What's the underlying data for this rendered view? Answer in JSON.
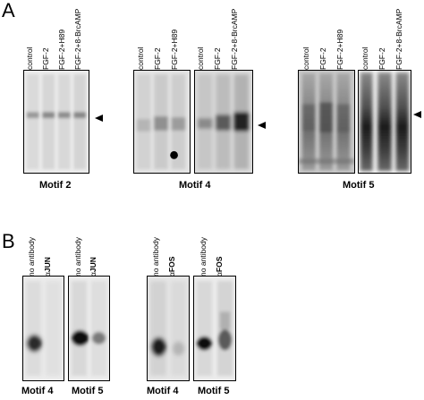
{
  "panel_a": {
    "letter": "A",
    "group1": {
      "lanes": [
        "control",
        "FGF-2",
        "FGF-2+H89",
        "FGF-2+8-BrcAMP"
      ],
      "motif": "Motif 2"
    },
    "group2": {
      "lanes_left": [
        "control",
        "FGF-2",
        "FGF-2+H89"
      ],
      "lanes_right": [
        "control",
        "FGF-2",
        "FGF-2+8-BrcAMP"
      ],
      "motif": "Motif 4"
    },
    "group3": {
      "lanes_left": [
        "control",
        "FGF-2",
        "FGF-2+H89"
      ],
      "lanes_right": [
        "control",
        "FGF-2",
        "FGF-2+8-BrcAMP"
      ],
      "motif": "Motif 5"
    }
  },
  "panel_b": {
    "letter": "B",
    "jun": {
      "lane_no_antibody": "no antibody",
      "alpha": "α",
      "antibody": "JUN",
      "motif_left": "Motif 4",
      "motif_right": "Motif 5"
    },
    "fos": {
      "lane_no_antibody": "no antibody",
      "alpha": "α",
      "antibody": "FOS",
      "motif_left": "Motif 4",
      "motif_right": "Motif 5"
    }
  }
}
